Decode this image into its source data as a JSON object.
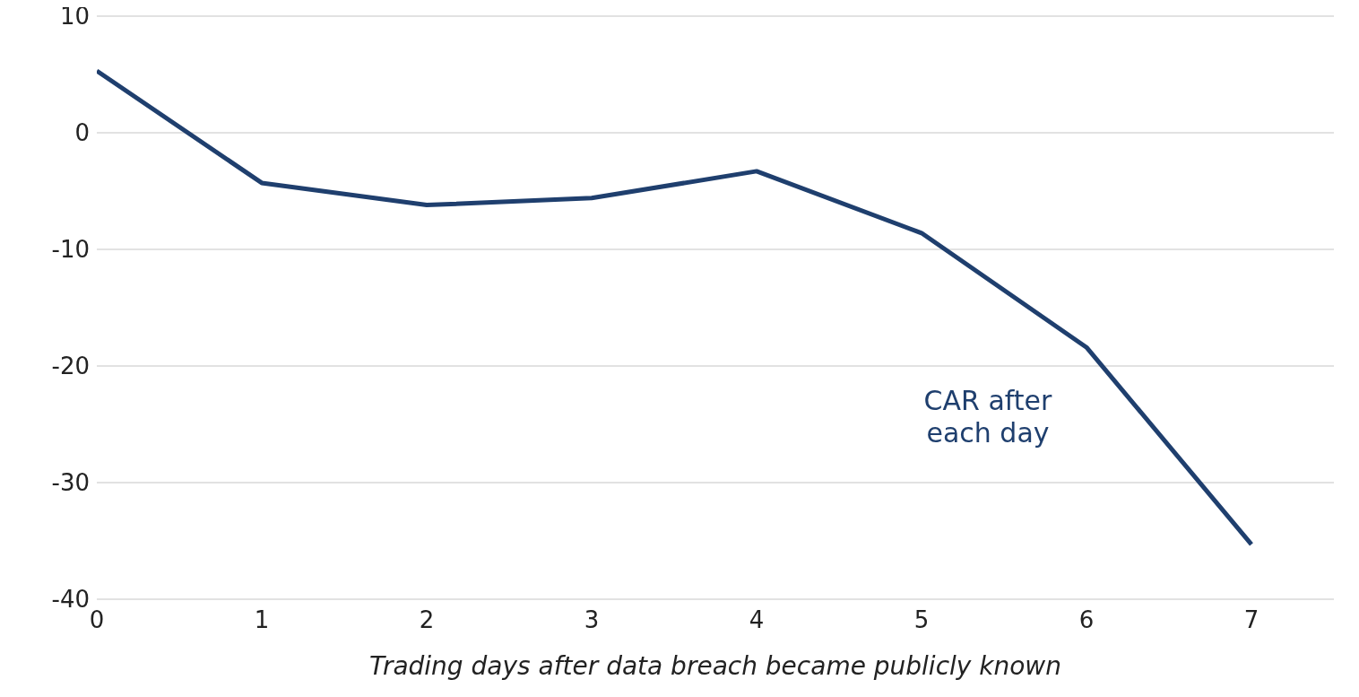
{
  "chart_data": {
    "type": "line",
    "xlabel": "Trading days after data breach became publicly known",
    "x": [
      0,
      1,
      2,
      3,
      4,
      5,
      6,
      7
    ],
    "series": [
      {
        "name": "CAR after each day",
        "color": "#1f3f6e",
        "values": [
          5.3,
          -4.3,
          -6.2,
          -5.6,
          -3.3,
          -8.6,
          -18.4,
          -35.3
        ]
      }
    ],
    "xlim": [
      0,
      7.5
    ],
    "xticks": [
      0,
      1,
      2,
      3,
      4,
      5,
      6,
      7
    ],
    "ylim": [
      -40,
      10
    ],
    "yticks": [
      10,
      0,
      -10,
      -20,
      -30,
      -40
    ],
    "grid": "y",
    "marker": "none",
    "line_style": "solid"
  }
}
